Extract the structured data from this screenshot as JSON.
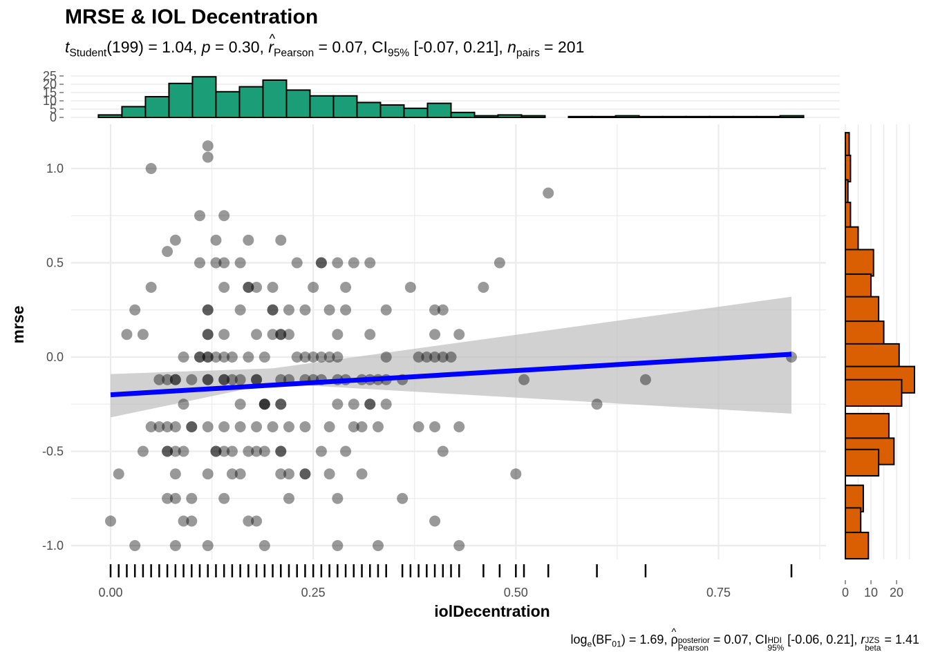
{
  "title": "MRSE & IOL Decentration",
  "subtitle": {
    "t": "t",
    "t_sub": "Student",
    "t_val": "(199) = 1.04, ",
    "p": "p",
    "p_val": " = 0.30, ",
    "r": "r",
    "r_sub": "Pearson",
    "r_val": " = 0.07, CI",
    "ci_sub": "95%",
    "ci_val": " [-0.07, 0.21], ",
    "n": "n",
    "n_sub": "pairs",
    "n_val": " = 201"
  },
  "caption": {
    "log": "log",
    "log_sub": "e",
    "bf_open": "(BF",
    "bf_sub": "01",
    "bf_val": ") = 1.69, ",
    "rho": "ρ",
    "rho_sup": "posterior",
    "rho_sub": "Pearson",
    "rho_val": " = 0.07, CI",
    "ci_sup": "HDI",
    "ci_sub": "95%",
    "ci_val": " [-0.06, 0.21], ",
    "r": "r",
    "r_sup": "JZS",
    "r_sub": "beta",
    "r_val": " = 1.41"
  },
  "colors": {
    "points": "#000000",
    "fit_line": "#0000FF",
    "ci_band": "#BEBEBE",
    "x_hist": "#1B9E77",
    "y_hist": "#D95F02",
    "grid": "#EBEBEB"
  },
  "chart_data": [
    {
      "type": "scatter",
      "xlabel": "iolDecentration",
      "ylabel": "mrse",
      "xlim": [
        -0.02,
        0.87
      ],
      "ylim": [
        -1.08,
        1.2
      ],
      "x_ticks": [
        0.0,
        0.25,
        0.5,
        0.75
      ],
      "x_tick_labels": [
        "0.00",
        "0.25",
        "0.50",
        "0.75"
      ],
      "y_ticks": [
        -1.0,
        -0.5,
        0.0,
        0.5,
        1.0
      ],
      "y_tick_labels": [
        "-1.0",
        "-0.5",
        "0.0",
        "0.5",
        "1.0"
      ],
      "points": [
        [
          0.12,
          1.12
        ],
        [
          0.12,
          1.06
        ],
        [
          0.05,
          1.0
        ],
        [
          0.54,
          0.87
        ],
        [
          0.11,
          0.75
        ],
        [
          0.14,
          0.75
        ],
        [
          0.08,
          0.62
        ],
        [
          0.13,
          0.62
        ],
        [
          0.17,
          0.62
        ],
        [
          0.21,
          0.62
        ],
        [
          0.07,
          0.56
        ],
        [
          0.11,
          0.5
        ],
        [
          0.13,
          0.5
        ],
        [
          0.14,
          0.5
        ],
        [
          0.16,
          0.5
        ],
        [
          0.23,
          0.5
        ],
        [
          0.26,
          0.5
        ],
        [
          0.26,
          0.5
        ],
        [
          0.28,
          0.5
        ],
        [
          0.3,
          0.5
        ],
        [
          0.32,
          0.5
        ],
        [
          0.48,
          0.5
        ],
        [
          0.05,
          0.37
        ],
        [
          0.14,
          0.37
        ],
        [
          0.17,
          0.37
        ],
        [
          0.17,
          0.37
        ],
        [
          0.18,
          0.37
        ],
        [
          0.2,
          0.37
        ],
        [
          0.25,
          0.37
        ],
        [
          0.29,
          0.37
        ],
        [
          0.37,
          0.37
        ],
        [
          0.46,
          0.37
        ],
        [
          0.03,
          0.25
        ],
        [
          0.12,
          0.25
        ],
        [
          0.12,
          0.25
        ],
        [
          0.16,
          0.25
        ],
        [
          0.2,
          0.25
        ],
        [
          0.2,
          0.25
        ],
        [
          0.22,
          0.25
        ],
        [
          0.24,
          0.25
        ],
        [
          0.27,
          0.25
        ],
        [
          0.29,
          0.25
        ],
        [
          0.34,
          0.25
        ],
        [
          0.4,
          0.25
        ],
        [
          0.41,
          0.25
        ],
        [
          0.02,
          0.12
        ],
        [
          0.04,
          0.12
        ],
        [
          0.12,
          0.12
        ],
        [
          0.12,
          0.12
        ],
        [
          0.14,
          0.12
        ],
        [
          0.18,
          0.12
        ],
        [
          0.2,
          0.12
        ],
        [
          0.21,
          0.12
        ],
        [
          0.21,
          0.12
        ],
        [
          0.22,
          0.12
        ],
        [
          0.28,
          0.12
        ],
        [
          0.32,
          0.12
        ],
        [
          0.4,
          0.12
        ],
        [
          0.43,
          0.12
        ],
        [
          0.09,
          0.0
        ],
        [
          0.11,
          0.0
        ],
        [
          0.11,
          0.0
        ],
        [
          0.12,
          0.0
        ],
        [
          0.12,
          0.0
        ],
        [
          0.13,
          0.0
        ],
        [
          0.14,
          0.0
        ],
        [
          0.15,
          0.0
        ],
        [
          0.17,
          0.0
        ],
        [
          0.19,
          0.0
        ],
        [
          0.23,
          0.0
        ],
        [
          0.24,
          0.0
        ],
        [
          0.25,
          0.0
        ],
        [
          0.26,
          0.0
        ],
        [
          0.27,
          0.0
        ],
        [
          0.28,
          0.0
        ],
        [
          0.34,
          0.0
        ],
        [
          0.38,
          0.0
        ],
        [
          0.39,
          0.0
        ],
        [
          0.4,
          0.0
        ],
        [
          0.41,
          0.0
        ],
        [
          0.42,
          0.0
        ],
        [
          0.84,
          0.0
        ],
        [
          0.06,
          -0.12
        ],
        [
          0.07,
          -0.12
        ],
        [
          0.08,
          -0.12
        ],
        [
          0.08,
          -0.12
        ],
        [
          0.1,
          -0.12
        ],
        [
          0.12,
          -0.12
        ],
        [
          0.12,
          -0.12
        ],
        [
          0.14,
          -0.12
        ],
        [
          0.14,
          -0.12
        ],
        [
          0.15,
          -0.12
        ],
        [
          0.16,
          -0.12
        ],
        [
          0.18,
          -0.12
        ],
        [
          0.18,
          -0.12
        ],
        [
          0.21,
          -0.12
        ],
        [
          0.22,
          -0.12
        ],
        [
          0.24,
          -0.12
        ],
        [
          0.25,
          -0.12
        ],
        [
          0.26,
          -0.12
        ],
        [
          0.28,
          -0.12
        ],
        [
          0.29,
          -0.12
        ],
        [
          0.31,
          -0.12
        ],
        [
          0.32,
          -0.12
        ],
        [
          0.33,
          -0.12
        ],
        [
          0.34,
          -0.12
        ],
        [
          0.36,
          -0.12
        ],
        [
          0.51,
          -0.12
        ],
        [
          0.66,
          -0.12
        ],
        [
          0.09,
          -0.25
        ],
        [
          0.16,
          -0.25
        ],
        [
          0.19,
          -0.25
        ],
        [
          0.19,
          -0.25
        ],
        [
          0.19,
          -0.25
        ],
        [
          0.21,
          -0.25
        ],
        [
          0.21,
          -0.25
        ],
        [
          0.28,
          -0.25
        ],
        [
          0.3,
          -0.25
        ],
        [
          0.32,
          -0.25
        ],
        [
          0.32,
          -0.25
        ],
        [
          0.34,
          -0.25
        ],
        [
          0.6,
          -0.25
        ],
        [
          0.05,
          -0.37
        ],
        [
          0.06,
          -0.37
        ],
        [
          0.07,
          -0.37
        ],
        [
          0.08,
          -0.37
        ],
        [
          0.1,
          -0.37
        ],
        [
          0.1,
          -0.37
        ],
        [
          0.12,
          -0.37
        ],
        [
          0.14,
          -0.37
        ],
        [
          0.16,
          -0.37
        ],
        [
          0.18,
          -0.37
        ],
        [
          0.2,
          -0.37
        ],
        [
          0.22,
          -0.37
        ],
        [
          0.24,
          -0.37
        ],
        [
          0.27,
          -0.37
        ],
        [
          0.3,
          -0.37
        ],
        [
          0.31,
          -0.37
        ],
        [
          0.33,
          -0.37
        ],
        [
          0.38,
          -0.37
        ],
        [
          0.4,
          -0.37
        ],
        [
          0.43,
          -0.37
        ],
        [
          0.04,
          -0.5
        ],
        [
          0.07,
          -0.5
        ],
        [
          0.07,
          -0.5
        ],
        [
          0.08,
          -0.5
        ],
        [
          0.09,
          -0.5
        ],
        [
          0.13,
          -0.5
        ],
        [
          0.13,
          -0.5
        ],
        [
          0.14,
          -0.5
        ],
        [
          0.15,
          -0.5
        ],
        [
          0.17,
          -0.5
        ],
        [
          0.18,
          -0.5
        ],
        [
          0.19,
          -0.5
        ],
        [
          0.21,
          -0.5
        ],
        [
          0.21,
          -0.5
        ],
        [
          0.26,
          -0.5
        ],
        [
          0.29,
          -0.5
        ],
        [
          0.41,
          -0.5
        ],
        [
          0.01,
          -0.62
        ],
        [
          0.08,
          -0.62
        ],
        [
          0.12,
          -0.62
        ],
        [
          0.15,
          -0.62
        ],
        [
          0.16,
          -0.62
        ],
        [
          0.21,
          -0.62
        ],
        [
          0.22,
          -0.62
        ],
        [
          0.24,
          -0.62
        ],
        [
          0.24,
          -0.62
        ],
        [
          0.27,
          -0.62
        ],
        [
          0.31,
          -0.62
        ],
        [
          0.5,
          -0.62
        ],
        [
          0.07,
          -0.75
        ],
        [
          0.08,
          -0.75
        ],
        [
          0.1,
          -0.75
        ],
        [
          0.14,
          -0.75
        ],
        [
          0.22,
          -0.75
        ],
        [
          0.28,
          -0.75
        ],
        [
          0.36,
          -0.75
        ],
        [
          0.0,
          -0.87
        ],
        [
          0.09,
          -0.87
        ],
        [
          0.1,
          -0.87
        ],
        [
          0.17,
          -0.87
        ],
        [
          0.18,
          -0.87
        ],
        [
          0.4,
          -0.87
        ],
        [
          0.03,
          -1.0
        ],
        [
          0.08,
          -1.0
        ],
        [
          0.12,
          -1.0
        ],
        [
          0.19,
          -1.0
        ],
        [
          0.28,
          -1.0
        ],
        [
          0.33,
          -1.0
        ],
        [
          0.43,
          -1.0
        ]
      ],
      "fit_line": {
        "x": [
          0.0,
          0.84
        ],
        "y": [
          -0.2,
          0.015
        ]
      },
      "ci_band": {
        "x": [
          0.0,
          0.2,
          0.84
        ],
        "lower": [
          -0.32,
          -0.14,
          -0.3
        ],
        "upper": [
          -0.09,
          -0.06,
          0.32
        ]
      }
    },
    {
      "type": "bar",
      "title": "",
      "axis": "x-marginal-histogram",
      "bin_width": 0.029,
      "bin_start": -0.015,
      "counts": [
        1.5,
        6.5,
        12.5,
        20.5,
        24.5,
        15.5,
        18.5,
        22.5,
        16.5,
        13,
        13,
        9,
        7.5,
        5.5,
        8.5,
        3,
        1,
        1.5,
        1,
        0,
        0.5,
        0.5,
        1,
        0.5,
        0.5,
        0.5,
        0.5,
        0.5,
        0.5,
        1
      ],
      "y_ticks": [
        0,
        5,
        10,
        15,
        20,
        25
      ],
      "y_tick_labels": [
        "0",
        "5",
        "10",
        "15",
        "20",
        "25"
      ]
    },
    {
      "type": "bar",
      "axis": "y-marginal-histogram",
      "bin_centers": [
        1.12,
        1.0,
        0.87,
        0.75,
        0.62,
        0.5,
        0.37,
        0.25,
        0.12,
        0.0,
        -0.12,
        -0.19,
        -0.37,
        -0.5,
        -0.56,
        -0.75,
        -0.87,
        -1.0
      ],
      "counts": [
        1.5,
        2,
        1,
        2,
        5,
        11,
        10,
        13,
        15,
        21,
        27,
        22,
        17,
        19,
        13,
        7,
        6,
        9
      ],
      "x_ticks": [
        0,
        10,
        20
      ],
      "x_tick_labels": [
        "0",
        "10",
        "20"
      ]
    }
  ]
}
